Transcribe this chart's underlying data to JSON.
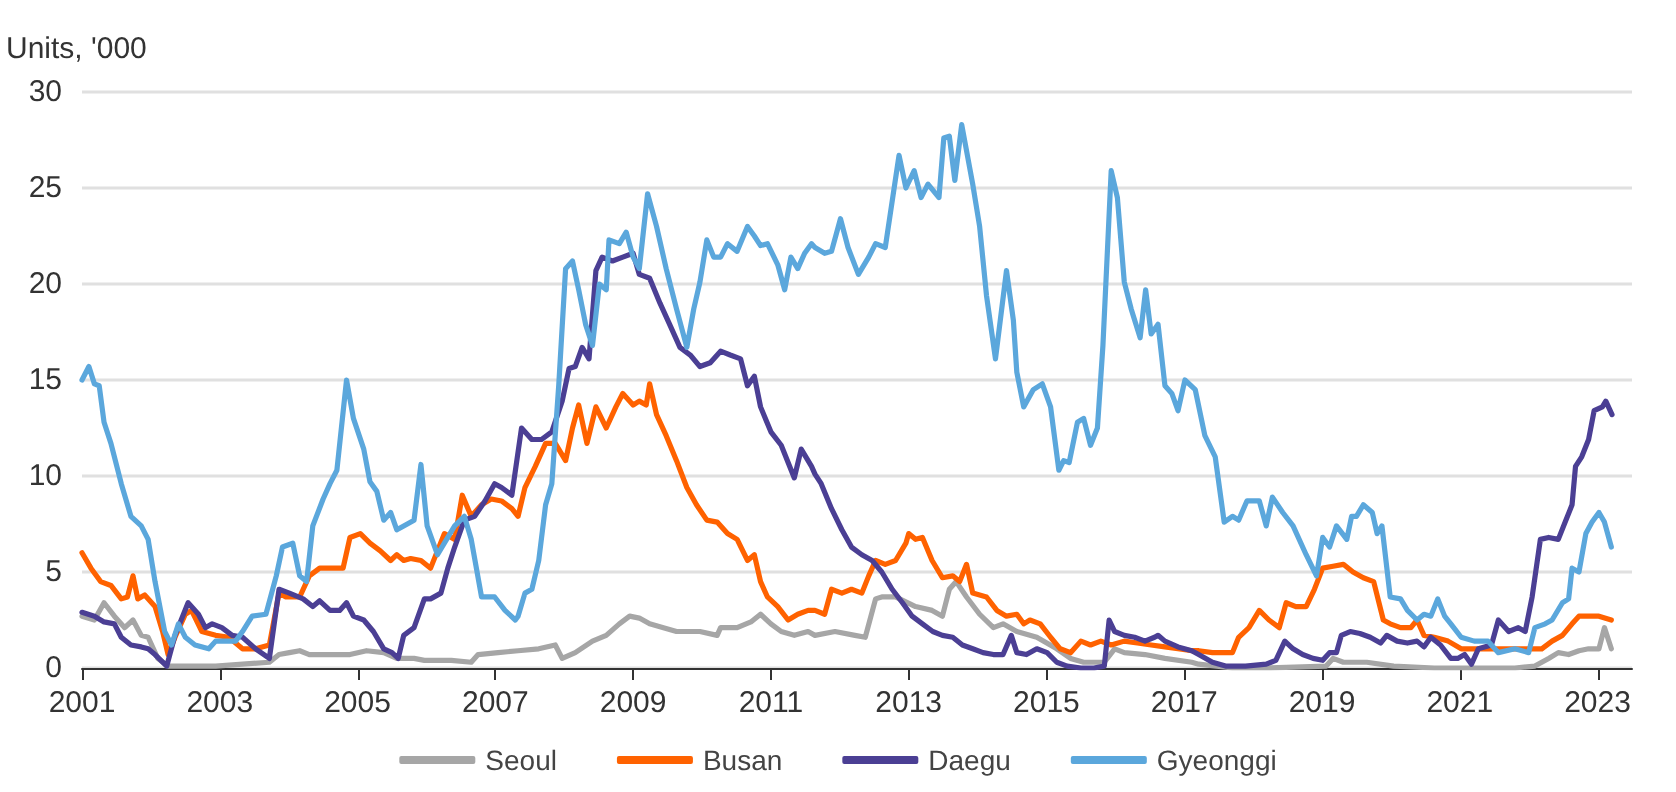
{
  "chart_data": {
    "type": "line",
    "ylabel": "Units, '000",
    "xlim": [
      2001,
      2023.5
    ],
    "xticks": [
      2001,
      2003,
      2005,
      2007,
      2009,
      2011,
      2013,
      2015,
      2017,
      2019,
      2021,
      2023
    ],
    "ylim": [
      0,
      30
    ],
    "yticks": [
      0,
      5,
      10,
      15,
      20,
      25,
      30
    ],
    "grid": "y",
    "legend": "bottom",
    "marker": "none",
    "line_style": "solid",
    "series": [
      {
        "name": "Seoul",
        "color": "#a6a6a6",
        "x": [
          2001.0,
          2001.18,
          2001.32,
          2001.47,
          2001.62,
          2001.74,
          2001.86,
          2001.96,
          2002.1,
          2002.25,
          2002.94,
          2003.72,
          2003.86,
          2004.01,
          2004.16,
          2004.3,
          2004.6,
          2004.89,
          2005.13,
          2005.38,
          2005.57,
          2005.82,
          2005.97,
          2006.06,
          2006.36,
          2006.65,
          2006.75,
          2007.04,
          2007.33,
          2007.63,
          2007.87,
          2007.97,
          2008.16,
          2008.41,
          2008.61,
          2008.8,
          2008.95,
          2009.09,
          2009.24,
          2009.44,
          2009.63,
          2009.83,
          2009.97,
          2010.22,
          2010.27,
          2010.51,
          2010.71,
          2010.85,
          2011.0,
          2011.15,
          2011.34,
          2011.54,
          2011.64,
          2011.93,
          2012.22,
          2012.37,
          2012.52,
          2012.61,
          2012.81,
          2013.1,
          2013.34,
          2013.49,
          2013.59,
          2013.69,
          2013.84,
          2014.03,
          2014.23,
          2014.37,
          2014.57,
          2014.86,
          2015.15,
          2015.35,
          2015.54,
          2015.84,
          2015.99,
          2016.13,
          2016.43,
          2016.72,
          2017.11,
          2017.21,
          2017.7,
          2018.19,
          2019.06,
          2019.16,
          2019.31,
          2019.65,
          2020.04,
          2020.63,
          2021.31,
          2021.8,
          2022.09,
          2022.29,
          2022.43,
          2022.58,
          2022.73,
          2022.87,
          2023.02,
          2023.1,
          2023.2
        ],
        "values": [
          2.7,
          2.5,
          3.4,
          2.7,
          2.1,
          2.5,
          1.7,
          1.6,
          0.5,
          0.1,
          0.1,
          0.3,
          0.7,
          0.8,
          0.9,
          0.7,
          0.7,
          0.7,
          0.9,
          0.8,
          0.5,
          0.5,
          0.4,
          0.4,
          0.4,
          0.3,
          0.7,
          0.8,
          0.9,
          1.0,
          1.2,
          0.5,
          0.8,
          1.4,
          1.7,
          2.3,
          2.7,
          2.6,
          2.3,
          2.1,
          1.9,
          1.9,
          1.9,
          1.7,
          2.1,
          2.1,
          2.4,
          2.8,
          2.3,
          1.9,
          1.7,
          1.9,
          1.7,
          1.9,
          1.7,
          1.6,
          3.6,
          3.7,
          3.7,
          3.2,
          3.0,
          2.7,
          4.1,
          4.5,
          3.7,
          2.8,
          2.1,
          2.3,
          1.9,
          1.6,
          1.0,
          0.5,
          0.3,
          0.3,
          1.0,
          0.8,
          0.7,
          0.5,
          0.3,
          0.2,
          0.0,
          0.0,
          0.1,
          0.5,
          0.3,
          0.3,
          0.1,
          0.0,
          0.0,
          0.0,
          0.1,
          0.5,
          0.8,
          0.7,
          0.9,
          1.0,
          1.0,
          2.1,
          1.0
        ]
      },
      {
        "name": "Busan",
        "color": "#ff6200",
        "x": [
          2001.0,
          2001.13,
          2001.27,
          2001.42,
          2001.57,
          2001.66,
          2001.74,
          2001.81,
          2001.91,
          2002.06,
          2002.17,
          2002.25,
          2002.35,
          2002.5,
          2002.59,
          2002.74,
          2002.94,
          2003.13,
          2003.33,
          2003.52,
          2003.72,
          2003.86,
          2003.96,
          2004.16,
          2004.3,
          2004.45,
          2004.6,
          2004.79,
          2004.89,
          2005.04,
          2005.18,
          2005.33,
          2005.48,
          2005.57,
          2005.67,
          2005.77,
          2005.92,
          2006.06,
          2006.26,
          2006.41,
          2006.52,
          2006.65,
          2006.8,
          2006.94,
          2007.09,
          2007.24,
          2007.33,
          2007.43,
          2007.58,
          2007.73,
          2007.87,
          2008.02,
          2008.12,
          2008.21,
          2008.33,
          2008.46,
          2008.61,
          2008.75,
          2008.85,
          2009.0,
          2009.09,
          2009.19,
          2009.24,
          2009.34,
          2009.48,
          2009.63,
          2009.78,
          2009.92,
          2010.07,
          2010.22,
          2010.37,
          2010.51,
          2010.66,
          2010.76,
          2010.85,
          2010.95,
          2011.1,
          2011.25,
          2011.39,
          2011.54,
          2011.64,
          2011.78,
          2011.88,
          2012.03,
          2012.17,
          2012.32,
          2012.42,
          2012.52,
          2012.66,
          2012.81,
          2012.96,
          2013.0,
          2013.1,
          2013.2,
          2013.34,
          2013.49,
          2013.64,
          2013.74,
          2013.84,
          2013.93,
          2014.13,
          2014.28,
          2014.42,
          2014.57,
          2014.67,
          2014.76,
          2014.91,
          2015.06,
          2015.2,
          2015.35,
          2015.5,
          2015.64,
          2015.79,
          2015.94,
          2016.13,
          2016.32,
          2016.52,
          2016.72,
          2016.91,
          2017.11,
          2017.21,
          2017.41,
          2017.6,
          2017.7,
          2017.79,
          2017.94,
          2018.09,
          2018.23,
          2018.38,
          2018.48,
          2018.62,
          2018.77,
          2018.89,
          2019.01,
          2019.16,
          2019.31,
          2019.45,
          2019.6,
          2019.75,
          2019.89,
          2019.99,
          2020.14,
          2020.29,
          2020.38,
          2020.48,
          2020.63,
          2020.83,
          2021.02,
          2021.21,
          2021.41,
          2021.6,
          2021.8,
          2022.0,
          2022.19,
          2022.34,
          2022.49,
          2022.63,
          2022.73,
          2022.87,
          2023.02,
          2023.2
        ],
        "values": [
          6.0,
          5.2,
          4.5,
          4.3,
          3.6,
          3.7,
          4.8,
          3.6,
          3.8,
          3.2,
          1.9,
          0.7,
          1.6,
          2.8,
          3.0,
          1.9,
          1.7,
          1.6,
          1.0,
          1.0,
          1.2,
          3.9,
          3.7,
          3.7,
          4.8,
          5.2,
          5.2,
          5.2,
          6.8,
          7.0,
          6.5,
          6.1,
          5.6,
          5.9,
          5.6,
          5.7,
          5.6,
          5.2,
          7.0,
          6.7,
          9.0,
          7.9,
          8.5,
          8.8,
          8.7,
          8.3,
          7.9,
          9.4,
          10.5,
          11.7,
          11.7,
          10.8,
          12.5,
          13.7,
          11.7,
          13.6,
          12.5,
          13.6,
          14.3,
          13.7,
          13.9,
          13.7,
          14.8,
          13.2,
          12.1,
          10.8,
          9.4,
          8.5,
          7.7,
          7.6,
          7.0,
          6.7,
          5.6,
          5.9,
          4.5,
          3.7,
          3.2,
          2.5,
          2.8,
          3.0,
          3.0,
          2.8,
          4.1,
          3.9,
          4.1,
          3.9,
          4.8,
          5.6,
          5.4,
          5.6,
          6.5,
          7.0,
          6.7,
          6.8,
          5.6,
          4.7,
          4.8,
          4.5,
          5.4,
          3.9,
          3.7,
          3.0,
          2.7,
          2.8,
          2.3,
          2.5,
          2.3,
          1.6,
          1.0,
          0.8,
          1.4,
          1.2,
          1.4,
          1.2,
          1.4,
          1.3,
          1.2,
          1.1,
          1.0,
          0.9,
          0.9,
          0.8,
          0.8,
          0.8,
          1.6,
          2.1,
          3.0,
          2.5,
          2.1,
          3.4,
          3.2,
          3.2,
          4.1,
          5.2,
          5.3,
          5.4,
          5.0,
          4.7,
          4.5,
          2.5,
          2.3,
          2.1,
          2.1,
          2.5,
          1.7,
          1.6,
          1.4,
          1.0,
          1.0,
          1.0,
          1.0,
          1.0,
          1.0,
          1.0,
          1.4,
          1.7,
          2.3,
          2.7,
          2.7,
          2.7,
          2.5
        ]
      },
      {
        "name": "Daegu",
        "color": "#4b3f94",
        "x": [
          2001.0,
          2001.18,
          2001.32,
          2001.47,
          2001.57,
          2001.71,
          2001.86,
          2001.96,
          2002.06,
          2002.23,
          2002.35,
          2002.54,
          2002.69,
          2002.79,
          2002.89,
          2003.03,
          2003.18,
          2003.33,
          2003.52,
          2003.72,
          2003.86,
          2004.01,
          2004.21,
          2004.35,
          2004.45,
          2004.6,
          2004.74,
          2004.84,
          2004.94,
          2005.09,
          2005.23,
          2005.38,
          2005.5,
          2005.59,
          2005.67,
          2005.82,
          2005.97,
          2006.06,
          2006.21,
          2006.31,
          2006.41,
          2006.55,
          2006.7,
          2006.85,
          2006.99,
          2007.09,
          2007.24,
          2007.38,
          2007.53,
          2007.67,
          2007.82,
          2007.97,
          2008.07,
          2008.16,
          2008.26,
          2008.36,
          2008.46,
          2008.55,
          2008.7,
          2008.85,
          2009.0,
          2009.09,
          2009.24,
          2009.39,
          2009.53,
          2009.68,
          2009.83,
          2009.97,
          2010.12,
          2010.27,
          2010.41,
          2010.56,
          2010.66,
          2010.76,
          2010.85,
          2011.0,
          2011.15,
          2011.34,
          2011.44,
          2011.59,
          2011.64,
          2011.73,
          2011.88,
          2012.03,
          2012.17,
          2012.32,
          2012.47,
          2012.61,
          2012.76,
          2012.91,
          2013.05,
          2013.2,
          2013.35,
          2013.49,
          2013.64,
          2013.78,
          2013.93,
          2014.08,
          2014.23,
          2014.37,
          2014.49,
          2014.57,
          2014.71,
          2014.86,
          2015.01,
          2015.15,
          2015.3,
          2015.5,
          2015.69,
          2015.84,
          2015.91,
          2015.99,
          2016.13,
          2016.28,
          2016.43,
          2016.57,
          2016.62,
          2016.72,
          2016.91,
          2017.11,
          2017.21,
          2017.41,
          2017.6,
          2017.89,
          2018.19,
          2018.33,
          2018.46,
          2018.58,
          2018.72,
          2018.87,
          2019.01,
          2019.11,
          2019.21,
          2019.28,
          2019.41,
          2019.55,
          2019.7,
          2019.85,
          2019.94,
          2020.09,
          2020.24,
          2020.38,
          2020.48,
          2020.58,
          2020.72,
          2020.87,
          2020.97,
          2021.07,
          2021.17,
          2021.27,
          2021.46,
          2021.56,
          2021.71,
          2021.85,
          2021.95,
          2022.05,
          2022.17,
          2022.29,
          2022.43,
          2022.53,
          2022.63,
          2022.68,
          2022.77,
          2022.87,
          2022.95,
          2023.07,
          2023.12,
          2023.21
        ],
        "values": [
          2.9,
          2.7,
          2.4,
          2.3,
          1.6,
          1.2,
          1.1,
          1.0,
          0.7,
          0.1,
          1.7,
          3.4,
          2.8,
          2.1,
          2.3,
          2.1,
          1.7,
          1.6,
          1.0,
          0.5,
          4.1,
          3.9,
          3.6,
          3.2,
          3.5,
          3.0,
          3.0,
          3.4,
          2.7,
          2.5,
          1.9,
          1.0,
          0.8,
          0.5,
          1.7,
          2.1,
          3.6,
          3.6,
          3.9,
          5.2,
          6.3,
          7.7,
          7.9,
          8.7,
          9.6,
          9.4,
          9.0,
          12.5,
          11.9,
          11.9,
          12.3,
          13.9,
          15.6,
          15.7,
          16.7,
          16.1,
          20.7,
          21.4,
          21.2,
          21.4,
          21.6,
          20.5,
          20.3,
          19.0,
          17.9,
          16.7,
          16.3,
          15.7,
          15.9,
          16.5,
          16.3,
          16.1,
          14.7,
          15.2,
          13.6,
          12.3,
          11.6,
          9.9,
          11.4,
          10.5,
          10.1,
          9.6,
          8.3,
          7.2,
          6.3,
          5.9,
          5.6,
          5.0,
          4.1,
          3.4,
          2.7,
          2.3,
          1.9,
          1.7,
          1.6,
          1.2,
          1.0,
          0.8,
          0.7,
          0.7,
          1.7,
          0.8,
          0.7,
          1.0,
          0.8,
          0.3,
          0.1,
          0.0,
          0.0,
          0.1,
          2.5,
          1.9,
          1.7,
          1.6,
          1.4,
          1.6,
          1.7,
          1.4,
          1.1,
          0.9,
          0.7,
          0.3,
          0.1,
          0.1,
          0.2,
          0.4,
          1.4,
          1.0,
          0.7,
          0.5,
          0.4,
          0.8,
          0.8,
          1.7,
          1.9,
          1.8,
          1.6,
          1.3,
          1.7,
          1.4,
          1.3,
          1.4,
          1.1,
          1.6,
          1.2,
          0.5,
          0.5,
          0.7,
          0.2,
          1.0,
          1.2,
          2.5,
          1.9,
          2.1,
          1.9,
          3.7,
          6.7,
          6.8,
          6.7,
          7.6,
          8.5,
          10.5,
          11.0,
          11.9,
          13.4,
          13.6,
          13.9,
          13.2
        ]
      },
      {
        "name": "Gyeonggi",
        "color": "#5ba7dc",
        "x": [
          2001.0,
          2001.1,
          2001.18,
          2001.25,
          2001.32,
          2001.42,
          2001.57,
          2001.71,
          2001.86,
          2001.96,
          2002.06,
          2002.2,
          2002.3,
          2002.4,
          2002.5,
          2002.64,
          2002.84,
          2002.94,
          2003.23,
          2003.33,
          2003.47,
          2003.67,
          2003.82,
          2003.91,
          2004.06,
          2004.16,
          2004.26,
          2004.35,
          2004.5,
          2004.6,
          2004.7,
          2004.84,
          2004.94,
          2005.09,
          2005.18,
          2005.28,
          2005.38,
          2005.48,
          2005.57,
          2005.67,
          2005.82,
          2005.92,
          2006.01,
          2006.16,
          2006.26,
          2006.41,
          2006.55,
          2006.65,
          2006.8,
          2006.99,
          2007.14,
          2007.29,
          2007.33,
          2007.43,
          2007.53,
          2007.63,
          2007.73,
          2007.82,
          2007.92,
          2008.02,
          2008.12,
          2008.21,
          2008.31,
          2008.41,
          2008.51,
          2008.61,
          2008.65,
          2008.8,
          2008.9,
          2009.0,
          2009.09,
          2009.21,
          2009.34,
          2009.48,
          2009.63,
          2009.78,
          2009.88,
          2009.97,
          2010.07,
          2010.17,
          2010.27,
          2010.37,
          2010.51,
          2010.66,
          2010.76,
          2010.85,
          2010.95,
          2011.1,
          2011.2,
          2011.29,
          2011.39,
          2011.49,
          2011.59,
          2011.64,
          2011.78,
          2011.88,
          2012.01,
          2012.12,
          2012.27,
          2012.42,
          2012.52,
          2012.66,
          2012.86,
          2012.96,
          2013.08,
          2013.18,
          2013.28,
          2013.44,
          2013.51,
          2013.59,
          2013.67,
          2013.77,
          2013.93,
          2014.03,
          2014.13,
          2014.26,
          2014.42,
          2014.52,
          2014.57,
          2014.67,
          2014.81,
          2014.94,
          2015.06,
          2015.18,
          2015.25,
          2015.33,
          2015.45,
          2015.54,
          2015.64,
          2015.74,
          2015.82,
          2015.94,
          2016.03,
          2016.13,
          2016.23,
          2016.36,
          2016.44,
          2016.52,
          2016.62,
          2016.72,
          2016.82,
          2016.91,
          2017.01,
          2017.16,
          2017.3,
          2017.45,
          2017.58,
          2017.7,
          2017.79,
          2017.91,
          2018.09,
          2018.19,
          2018.28,
          2018.43,
          2018.58,
          2018.77,
          2018.92,
          2019.01,
          2019.11,
          2019.21,
          2019.36,
          2019.43,
          2019.5,
          2019.6,
          2019.73,
          2019.8,
          2019.87,
          2019.99,
          2020.14,
          2020.24,
          2020.38,
          2020.48,
          2020.58,
          2020.68,
          2020.78,
          2020.87,
          2021.02,
          2021.21,
          2021.41,
          2021.56,
          2021.8,
          2022.0,
          2022.09,
          2022.24,
          2022.34,
          2022.49,
          2022.58,
          2022.63,
          2022.73,
          2022.83,
          2022.92,
          2023.02,
          2023.1,
          2023.2
        ],
        "values": [
          15.0,
          15.7,
          14.8,
          14.7,
          12.8,
          11.7,
          9.6,
          7.9,
          7.4,
          6.7,
          4.5,
          1.9,
          1.2,
          2.3,
          1.6,
          1.2,
          1.0,
          1.4,
          1.4,
          1.9,
          2.7,
          2.8,
          4.8,
          6.3,
          6.5,
          4.8,
          4.5,
          7.4,
          8.8,
          9.6,
          10.3,
          15.0,
          13.0,
          11.4,
          9.7,
          9.2,
          7.7,
          8.1,
          7.2,
          7.4,
          7.7,
          10.6,
          7.4,
          5.9,
          6.5,
          7.4,
          7.9,
          6.7,
          3.7,
          3.7,
          3.0,
          2.5,
          2.7,
          3.9,
          4.1,
          5.6,
          8.5,
          9.6,
          14.7,
          20.8,
          21.2,
          19.7,
          17.9,
          16.8,
          20.0,
          19.7,
          22.3,
          22.1,
          22.7,
          21.4,
          20.8,
          24.7,
          23.0,
          20.8,
          18.7,
          16.7,
          18.7,
          20.1,
          22.3,
          21.4,
          21.4,
          22.1,
          21.7,
          23.0,
          22.5,
          22.0,
          22.1,
          21.0,
          19.7,
          21.4,
          20.8,
          21.6,
          22.1,
          21.9,
          21.6,
          21.7,
          23.4,
          21.9,
          20.5,
          21.4,
          22.1,
          21.9,
          26.7,
          25.0,
          25.9,
          24.5,
          25.2,
          24.5,
          27.6,
          27.7,
          25.4,
          28.3,
          25.2,
          23.0,
          19.4,
          16.1,
          20.7,
          18.1,
          15.4,
          13.6,
          14.5,
          14.8,
          13.6,
          10.3,
          10.8,
          10.7,
          12.8,
          13.0,
          11.6,
          12.5,
          16.8,
          25.9,
          24.5,
          20.1,
          18.7,
          17.2,
          19.7,
          17.4,
          17.9,
          14.7,
          14.3,
          13.4,
          15.0,
          14.5,
          12.1,
          11.0,
          7.6,
          7.9,
          7.7,
          8.7,
          8.7,
          7.4,
          8.9,
          8.1,
          7.4,
          5.9,
          4.8,
          6.8,
          6.3,
          7.4,
          6.7,
          7.9,
          7.9,
          8.5,
          8.1,
          7.0,
          7.4,
          3.7,
          3.6,
          3.0,
          2.5,
          2.8,
          2.7,
          3.6,
          2.7,
          2.3,
          1.6,
          1.4,
          1.4,
          0.8,
          1.0,
          0.8,
          2.1,
          2.3,
          2.5,
          3.4,
          3.6,
          5.2,
          5.0,
          7.0,
          7.6,
          8.1,
          7.6,
          6.3
        ]
      }
    ]
  }
}
